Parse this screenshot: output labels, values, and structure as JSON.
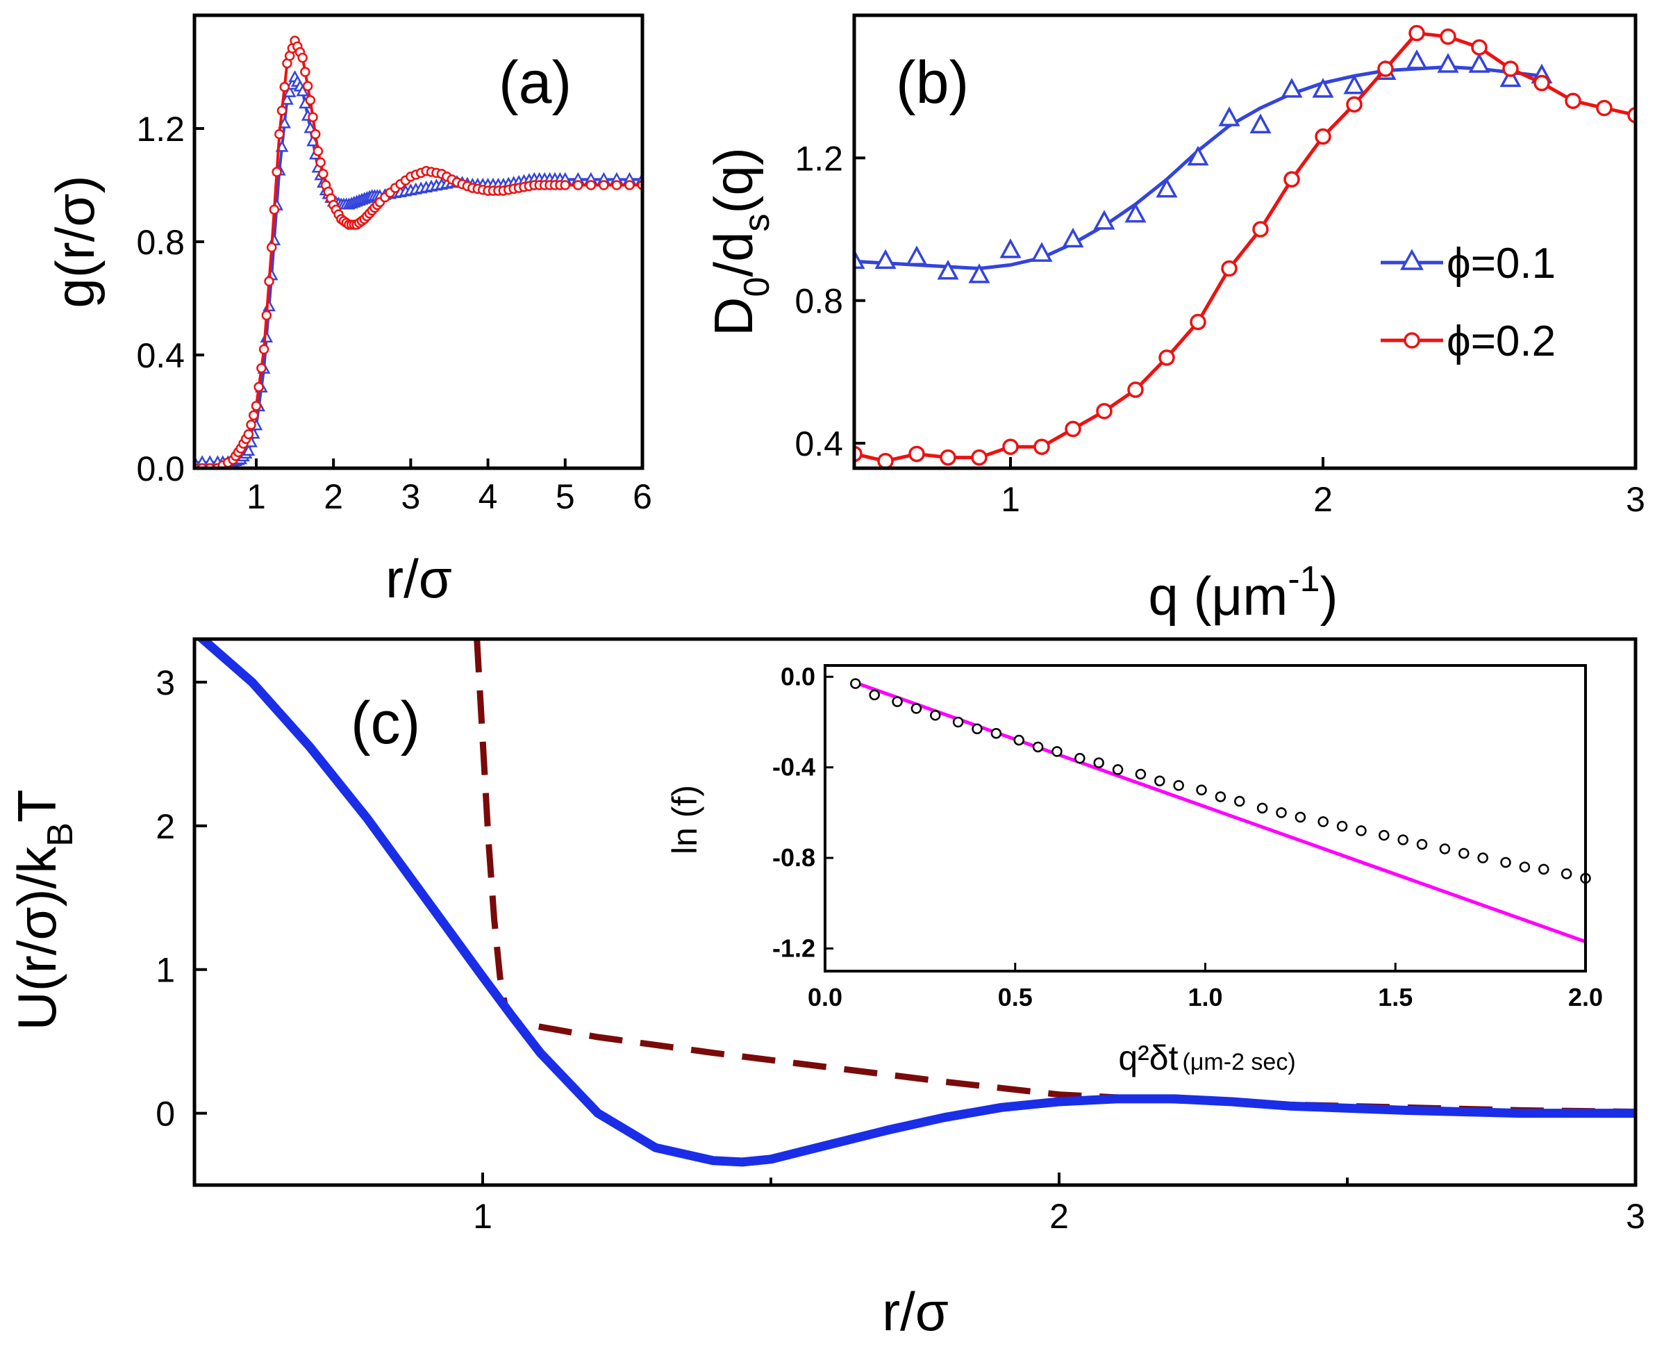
{
  "colors": {
    "phi01": "#3344dd",
    "phi02": "#ee1111",
    "u_solid": "#1a2ee8",
    "u_dashed": "#7a0a0a",
    "inset_fit": "#ff00ff",
    "inset_points": "#000000"
  },
  "chart_data": [
    {
      "id": "a",
      "type": "line",
      "panel_label": "(a)",
      "xlabel": "r/σ",
      "ylabel": "g(r/σ)",
      "xlim": [
        0.2,
        6
      ],
      "ylim": [
        0,
        1.6
      ],
      "xticks": [
        1,
        2,
        3,
        4,
        5,
        6
      ],
      "yticks": [
        0.0,
        0.4,
        0.8,
        1.2
      ],
      "ytick_labels": [
        "0.0",
        "0.4",
        "0.8",
        "1.2"
      ],
      "series": [
        {
          "key": "phi01",
          "marker": "triangle",
          "x": [
            0.2,
            0.5,
            0.7,
            0.8,
            0.9,
            1.0,
            1.1,
            1.2,
            1.3,
            1.4,
            1.5,
            1.6,
            1.7,
            1.8,
            1.9,
            2.0,
            2.1,
            2.2,
            2.3,
            2.4,
            2.5,
            2.6,
            2.8,
            3.0,
            3.2,
            3.4,
            3.6,
            3.8,
            4.0,
            4.2,
            4.4,
            4.6,
            4.8,
            5.0,
            5.5,
            6.0
          ],
          "y": [
            0.02,
            0.02,
            0.02,
            0.03,
            0.06,
            0.15,
            0.35,
            0.68,
            1.05,
            1.3,
            1.38,
            1.33,
            1.2,
            1.06,
            0.98,
            0.94,
            0.93,
            0.93,
            0.94,
            0.95,
            0.96,
            0.96,
            0.97,
            0.98,
            0.99,
            1.0,
            1.01,
            1.0,
            1.0,
            1.0,
            1.01,
            1.02,
            1.02,
            1.02,
            1.02,
            1.02
          ]
        },
        {
          "key": "phi02",
          "marker": "circle",
          "x": [
            0.2,
            0.5,
            0.7,
            0.8,
            0.9,
            1.0,
            1.1,
            1.2,
            1.3,
            1.4,
            1.5,
            1.6,
            1.7,
            1.8,
            1.9,
            2.0,
            2.1,
            2.2,
            2.3,
            2.4,
            2.5,
            2.6,
            2.8,
            3.0,
            3.2,
            3.4,
            3.6,
            3.8,
            4.0,
            4.2,
            4.4,
            4.6,
            4.8,
            5.0,
            5.5,
            6.0
          ],
          "y": [
            0.0,
            0.0,
            0.03,
            0.07,
            0.12,
            0.22,
            0.42,
            0.78,
            1.18,
            1.43,
            1.51,
            1.45,
            1.3,
            1.12,
            1.0,
            0.93,
            0.88,
            0.86,
            0.86,
            0.88,
            0.91,
            0.94,
            0.99,
            1.03,
            1.05,
            1.04,
            1.01,
            0.99,
            0.98,
            0.98,
            0.99,
            1.0,
            1.0,
            1.0,
            1.0,
            1.0
          ]
        }
      ]
    },
    {
      "id": "b",
      "type": "line",
      "panel_label": "(b)",
      "xlabel": "q (μm",
      "xlabel_sup": "-1",
      "xlabel_end": ")",
      "ylabel": "D",
      "ylabel_sub1": "0",
      "ylabel_mid": "/d",
      "ylabel_sub2": "s",
      "ylabel_end": "(q)",
      "xlim": [
        0.5,
        3.0
      ],
      "ylim": [
        0.33,
        1.6
      ],
      "xticks": [
        1,
        2,
        3
      ],
      "yticks": [
        0.4,
        0.8,
        1.2
      ],
      "ytick_labels": [
        "0.4",
        "0.8",
        "1.2"
      ],
      "legend": [
        "ϕ=0.1",
        "ϕ=0.2"
      ],
      "series": [
        {
          "key": "phi01",
          "marker": "triangle",
          "x": [
            0.5,
            0.6,
            0.7,
            0.8,
            0.9,
            1.0,
            1.1,
            1.2,
            1.3,
            1.4,
            1.5,
            1.6,
            1.7,
            1.8,
            1.9,
            2.0,
            2.1,
            2.2,
            2.3,
            2.4,
            2.5,
            2.6,
            2.7
          ],
          "y": [
            0.91,
            0.91,
            0.92,
            0.88,
            0.87,
            0.94,
            0.93,
            0.97,
            1.02,
            1.04,
            1.11,
            1.2,
            1.31,
            1.29,
            1.39,
            1.39,
            1.4,
            1.44,
            1.47,
            1.46,
            1.46,
            1.42,
            1.43
          ],
          "fit": [
            [
              0.5,
              0.91
            ],
            [
              0.7,
              0.9
            ],
            [
              0.9,
              0.89
            ],
            [
              1.0,
              0.9
            ],
            [
              1.1,
              0.92
            ],
            [
              1.2,
              0.96
            ],
            [
              1.3,
              1.01
            ],
            [
              1.4,
              1.07
            ],
            [
              1.5,
              1.14
            ],
            [
              1.6,
              1.22
            ],
            [
              1.7,
              1.29
            ],
            [
              1.8,
              1.34
            ],
            [
              1.9,
              1.38
            ],
            [
              2.0,
              1.41
            ],
            [
              2.1,
              1.43
            ],
            [
              2.2,
              1.445
            ],
            [
              2.3,
              1.45
            ],
            [
              2.4,
              1.455
            ],
            [
              2.5,
              1.45
            ],
            [
              2.6,
              1.44
            ],
            [
              2.7,
              1.43
            ]
          ]
        },
        {
          "key": "phi02",
          "marker": "circle",
          "x": [
            0.5,
            0.6,
            0.7,
            0.8,
            0.9,
            1.0,
            1.1,
            1.2,
            1.3,
            1.4,
            1.5,
            1.6,
            1.7,
            1.8,
            1.9,
            2.0,
            2.1,
            2.2,
            2.3,
            2.4,
            2.5,
            2.6,
            2.7,
            2.8,
            2.9,
            3.0
          ],
          "y": [
            0.37,
            0.35,
            0.37,
            0.36,
            0.36,
            0.39,
            0.39,
            0.44,
            0.49,
            0.55,
            0.64,
            0.74,
            0.89,
            1.0,
            1.14,
            1.26,
            1.35,
            1.45,
            1.55,
            1.54,
            1.51,
            1.45,
            1.41,
            1.36,
            1.34,
            1.32
          ]
        }
      ]
    },
    {
      "id": "c",
      "type": "line",
      "panel_label": "(c)",
      "xlabel": "r/σ",
      "ylabel": "U(r/σ)/k",
      "ylabel_sub": "B",
      "ylabel_end": "T",
      "xlim": [
        0.5,
        3.0
      ],
      "ylim": [
        -0.5,
        3.3
      ],
      "xticks": [
        1,
        2,
        3
      ],
      "xminor": [
        1.5,
        2.5
      ],
      "yticks": [
        0,
        1,
        2,
        3
      ],
      "ytick_labels": [
        "0",
        "1",
        "2",
        "3"
      ],
      "series": [
        {
          "key": "u_solid",
          "style": "solid",
          "x": [
            0.5,
            0.6,
            0.7,
            0.8,
            0.9,
            1.0,
            1.05,
            1.1,
            1.2,
            1.3,
            1.4,
            1.45,
            1.5,
            1.6,
            1.7,
            1.8,
            1.9,
            2.0,
            2.1,
            2.2,
            2.3,
            2.4,
            2.6,
            2.8,
            3.0
          ],
          "y": [
            3.35,
            3.0,
            2.55,
            2.05,
            1.5,
            0.95,
            0.68,
            0.42,
            0.0,
            -0.24,
            -0.33,
            -0.34,
            -0.32,
            -0.22,
            -0.12,
            -0.03,
            0.04,
            0.08,
            0.1,
            0.1,
            0.08,
            0.05,
            0.02,
            0.0,
            0.0
          ]
        },
        {
          "key": "u_dashed",
          "style": "dashed",
          "x": [
            0.99,
            1.0,
            1.01,
            1.02,
            1.03,
            1.04,
            1.06,
            1.2,
            1.4,
            1.6,
            1.8,
            2.0,
            2.2,
            2.4,
            2.6,
            2.8,
            3.0
          ],
          "y": [
            3.3,
            2.6,
            1.9,
            1.35,
            0.95,
            0.72,
            0.63,
            0.53,
            0.42,
            0.32,
            0.22,
            0.13,
            0.09,
            0.06,
            0.04,
            0.02,
            0.01
          ]
        }
      ]
    },
    {
      "id": "inset",
      "type": "scatter",
      "xlabel": "q²δt",
      "xlabel_units": "(μm-2 sec)",
      "ylabel": "ln (f)",
      "xlim": [
        0.0,
        2.0
      ],
      "ylim": [
        -1.3,
        0.05
      ],
      "xticks": [
        0.0,
        0.5,
        1.0,
        1.5,
        2.0
      ],
      "xtick_labels": [
        "0.0",
        "0.5",
        "1.0",
        "1.5",
        "2.0"
      ],
      "yticks": [
        0.0,
        -0.4,
        -0.8,
        -1.2
      ],
      "ytick_labels": [
        "0.0",
        "-0.4",
        "-0.8",
        "-1.2"
      ],
      "points": {
        "key": "inset_points",
        "x": [
          0.08,
          0.13,
          0.19,
          0.24,
          0.29,
          0.35,
          0.4,
          0.45,
          0.51,
          0.56,
          0.61,
          0.67,
          0.72,
          0.77,
          0.83,
          0.88,
          0.93,
          0.99,
          1.04,
          1.09,
          1.15,
          1.2,
          1.25,
          1.31,
          1.36,
          1.41,
          1.47,
          1.52,
          1.57,
          1.63,
          1.68,
          1.73,
          1.79,
          1.84,
          1.89,
          1.95,
          2.0
        ],
        "y": [
          -0.03,
          -0.08,
          -0.11,
          -0.14,
          -0.17,
          -0.2,
          -0.23,
          -0.25,
          -0.28,
          -0.31,
          -0.33,
          -0.36,
          -0.38,
          -0.41,
          -0.43,
          -0.46,
          -0.48,
          -0.5,
          -0.53,
          -0.55,
          -0.58,
          -0.6,
          -0.62,
          -0.64,
          -0.66,
          -0.68,
          -0.7,
          -0.72,
          -0.74,
          -0.76,
          -0.78,
          -0.8,
          -0.82,
          -0.84,
          -0.85,
          -0.87,
          -0.89
        ]
      },
      "fit": {
        "key": "inset_fit",
        "x": [
          0.07,
          2.0
        ],
        "y": [
          -0.02,
          -1.17
        ]
      }
    }
  ]
}
